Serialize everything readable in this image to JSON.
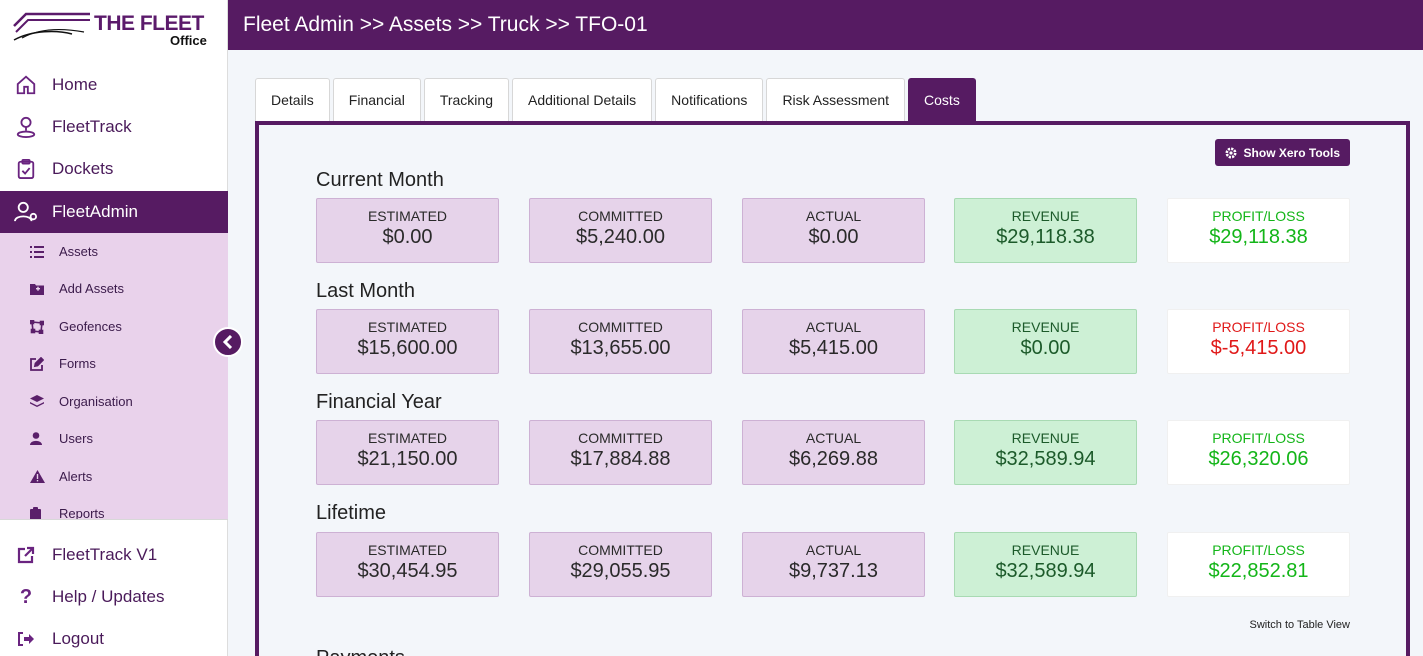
{
  "brand": {
    "name": "THE FLEET",
    "sub": "Office"
  },
  "nav": {
    "main": [
      {
        "label": "Home",
        "icon": "home-icon"
      },
      {
        "label": "FleetTrack",
        "icon": "location-person-icon"
      },
      {
        "label": "Dockets",
        "icon": "clipboard-check-icon"
      },
      {
        "label": "FleetAdmin",
        "icon": "user-gear-icon"
      }
    ],
    "sub": [
      {
        "label": "Assets",
        "icon": "list-icon"
      },
      {
        "label": "Add Assets",
        "icon": "folder-plus-icon"
      },
      {
        "label": "Geofences",
        "icon": "draw-polygon-icon"
      },
      {
        "label": "Forms",
        "icon": "edit-icon"
      },
      {
        "label": "Organisation",
        "icon": "layers-icon"
      },
      {
        "label": "Users",
        "icon": "user-icon"
      },
      {
        "label": "Alerts",
        "icon": "warning-icon"
      },
      {
        "label": "Reports",
        "icon": "clipboard-icon"
      }
    ],
    "bottom": [
      {
        "label": "FleetTrack V1",
        "icon": "external-link-icon"
      },
      {
        "label": "Help / Updates",
        "icon": "question-icon"
      },
      {
        "label": "Logout",
        "icon": "logout-icon"
      }
    ]
  },
  "header": {
    "breadcrumb": "Fleet Admin >> Assets >> Truck >> TFO-01"
  },
  "tabs": [
    {
      "label": "Details"
    },
    {
      "label": "Financial"
    },
    {
      "label": "Tracking"
    },
    {
      "label": "Additional Details"
    },
    {
      "label": "Notifications"
    },
    {
      "label": "Risk Assessment"
    },
    {
      "label": "Costs",
      "active": true
    }
  ],
  "costs": {
    "xero_button": "Show Xero Tools",
    "labels": {
      "estimated": "ESTIMATED",
      "committed": "COMMITTED",
      "actual": "ACTUAL",
      "revenue": "REVENUE",
      "profit": "PROFIT/LOSS"
    },
    "sections": [
      {
        "title": "Current Month",
        "estimated": "$0.00",
        "committed": "$5,240.00",
        "actual": "$0.00",
        "revenue": "$29,118.38",
        "profit": "$29,118.38",
        "profit_status": "positive"
      },
      {
        "title": "Last Month",
        "estimated": "$15,600.00",
        "committed": "$13,655.00",
        "actual": "$5,415.00",
        "revenue": "$0.00",
        "profit": "$-5,415.00",
        "profit_status": "negative"
      },
      {
        "title": "Financial Year",
        "estimated": "$21,150.00",
        "committed": "$17,884.88",
        "actual": "$6,269.88",
        "revenue": "$32,589.94",
        "profit": "$26,320.06",
        "profit_status": "positive"
      },
      {
        "title": "Lifetime",
        "estimated": "$30,454.95",
        "committed": "$29,055.95",
        "actual": "$9,737.13",
        "revenue": "$32,589.94",
        "profit": "$22,852.81",
        "profit_status": "positive"
      }
    ],
    "switch_view": "Switch to Table View",
    "payments_title": "Payments"
  },
  "colors": {
    "brand_purple": "#561b62",
    "submenu_bg": "#e9d2eb",
    "profit_positive": "#13b518",
    "profit_negative": "#e01818"
  }
}
